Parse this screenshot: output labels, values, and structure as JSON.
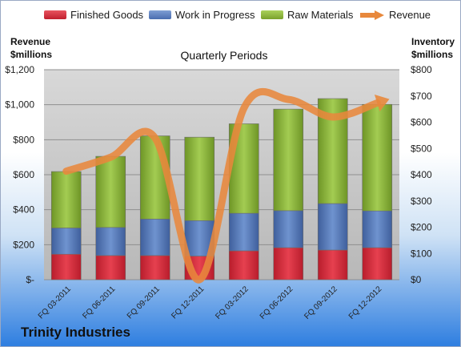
{
  "legend": {
    "finished": "Finished Goods",
    "wip": "Work in Progress",
    "raw": "Raw Materials",
    "revenue": "Revenue"
  },
  "axes": {
    "left_title_1": "Revenue",
    "left_title_2": "$millions",
    "right_title_1": "Inventory",
    "right_title_2": "$millions",
    "subtitle": "Quarterly Periods"
  },
  "company": "Trinity Industries",
  "colors": {
    "finished": "#d42a3a",
    "wip": "#5a7fbe",
    "raw": "#8fb83c",
    "revenue": "#e8883c",
    "plot_bg": "#c8c8c8"
  },
  "chart_data": {
    "type": "bar",
    "stacked": true,
    "categories": [
      "FQ 03-2011",
      "FQ 06-2011",
      "FQ 09-2011",
      "FQ 12-2011",
      "FQ 03-2012",
      "FQ 06-2012",
      "FQ 09-2012",
      "FQ 12-2012"
    ],
    "series": [
      {
        "name": "Finished Goods",
        "axis": "right",
        "values": [
          97,
          92,
          92,
          90,
          110,
          122,
          113,
          122
        ]
      },
      {
        "name": "Work in Progress",
        "axis": "right",
        "values": [
          100,
          107,
          139,
          135,
          143,
          141,
          177,
          140
        ]
      },
      {
        "name": "Raw Materials",
        "axis": "right",
        "values": [
          215,
          271,
          317,
          318,
          341,
          387,
          400,
          406
        ]
      },
      {
        "name": "Revenue",
        "type": "line",
        "axis": "left",
        "values": [
          620,
          700,
          810,
          0,
          980,
          1030,
          930,
          1010
        ]
      }
    ],
    "left_axis": {
      "range": [
        0,
        1200
      ],
      "ticks": [
        "$-",
        "$200",
        "$400",
        "$600",
        "$800",
        "$1,000",
        "$1,200"
      ]
    },
    "right_axis": {
      "range": [
        0,
        800
      ],
      "ticks": [
        "$0",
        "$100",
        "$200",
        "$300",
        "$400",
        "$500",
        "$600",
        "$700",
        "$800"
      ]
    },
    "grid": true
  }
}
